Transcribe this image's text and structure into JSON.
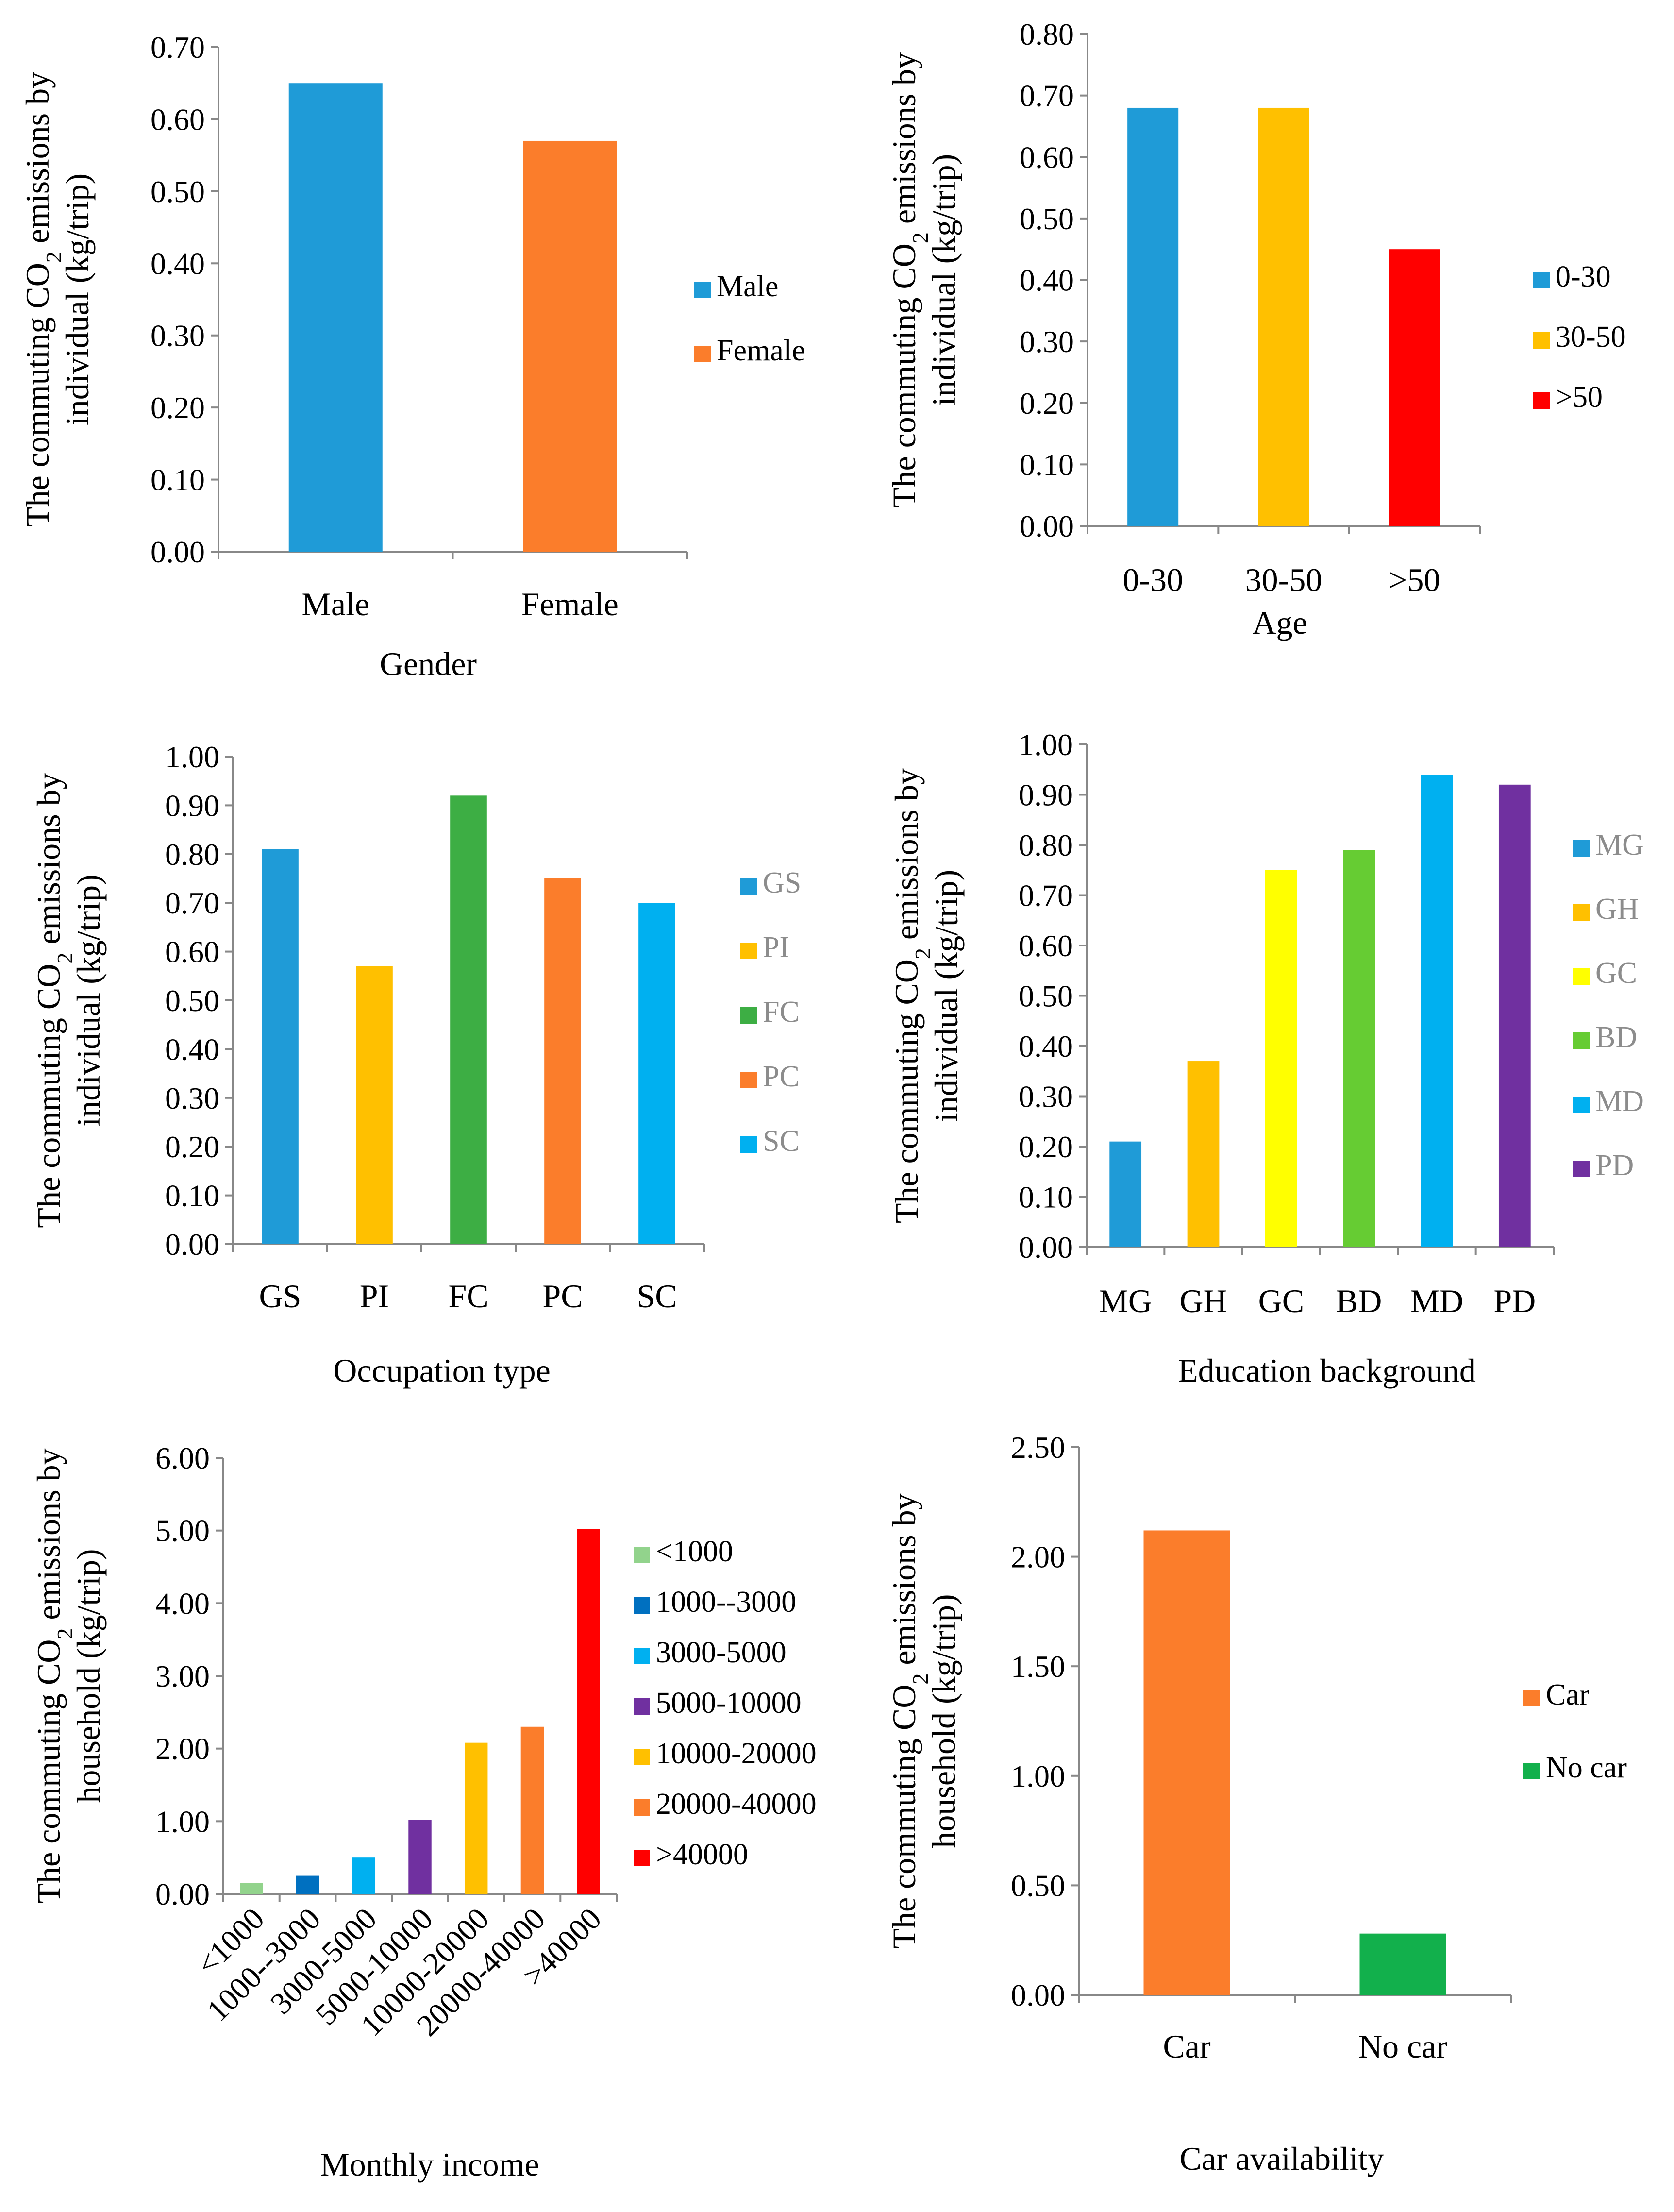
{
  "chart_data": [
    {
      "id": "gender",
      "type": "bar",
      "title": "",
      "xlabel": "Gender",
      "ylabel": [
        "The commuting CO",
        "2",
        " emissions by",
        "individual (kg/trip)"
      ],
      "ylim": [
        0,
        0.7
      ],
      "ystep": 0.1,
      "ydecimals": 2,
      "categories": [
        "Male",
        "Female"
      ],
      "values": [
        0.65,
        0.57
      ],
      "colors": [
        "#1f9bd7",
        "#fb7d2b"
      ],
      "legend": [
        "Male",
        "Female"
      ],
      "legend_position": "right",
      "legend_text_color": "#000000",
      "grid": false
    },
    {
      "id": "age",
      "type": "bar",
      "title": "",
      "xlabel": "Age",
      "ylabel": [
        "The commuting CO",
        "2",
        " emissions by",
        "individual (kg/trip)"
      ],
      "ylim": [
        0,
        0.8
      ],
      "ystep": 0.1,
      "ydecimals": 2,
      "categories": [
        "0-30",
        "30-50",
        ">50"
      ],
      "values": [
        0.68,
        0.68,
        0.45
      ],
      "colors": [
        "#1f9bd7",
        "#ffc000",
        "#ff0000"
      ],
      "legend": [
        "0-30",
        "30-50",
        ">50"
      ],
      "legend_position": "right",
      "legend_text_color": "#000000",
      "grid": false
    },
    {
      "id": "occupation",
      "type": "bar",
      "title": "",
      "xlabel": "Occupation type",
      "ylabel": [
        "The commuting CO",
        "2",
        " emissions by",
        "individual (kg/trip)"
      ],
      "ylim": [
        0,
        1.0
      ],
      "ystep": 0.1,
      "ydecimals": 2,
      "categories": [
        "GS",
        "PI",
        "FC",
        "PC",
        "SC"
      ],
      "values": [
        0.81,
        0.57,
        0.92,
        0.75,
        0.7
      ],
      "colors": [
        "#1f9bd7",
        "#ffc000",
        "#3dae44",
        "#fb7d2b",
        "#00b0f0"
      ],
      "legend": [
        "GS",
        "PI",
        "FC",
        "PC",
        "SC"
      ],
      "legend_position": "right",
      "legend_text_color": "#8c8c8c",
      "grid": false
    },
    {
      "id": "education",
      "type": "bar",
      "title": "",
      "xlabel": "Education background",
      "ylabel": [
        "The commuting CO",
        "2",
        " emissions by",
        "individual (kg/trip)"
      ],
      "ylim": [
        0,
        1.0
      ],
      "ystep": 0.1,
      "ydecimals": 2,
      "categories": [
        "MG",
        "GH",
        "GC",
        "BD",
        "MD",
        "PD"
      ],
      "values": [
        0.21,
        0.37,
        0.75,
        0.79,
        0.94,
        0.92
      ],
      "colors": [
        "#1f9bd7",
        "#ffc000",
        "#ffff00",
        "#66cc33",
        "#00b0f0",
        "#7030a0"
      ],
      "legend": [
        "MG",
        "GH",
        "GC",
        "BD",
        "MD",
        "PD"
      ],
      "legend_position": "right",
      "legend_text_color": "#8c8c8c",
      "grid": false
    },
    {
      "id": "income",
      "type": "bar",
      "title": "",
      "xlabel": "Monthly income",
      "ylabel": [
        "The commuting CO",
        "2",
        " emissions by",
        "household (kg/trip)"
      ],
      "ylim": [
        0,
        6.0
      ],
      "ystep": 1.0,
      "ydecimals": 2,
      "categories": [
        "<1000",
        "1000--3000",
        "3000-5000",
        "5000-10000",
        "10000-20000",
        "20000-40000",
        ">40000"
      ],
      "values": [
        0.15,
        0.25,
        0.5,
        1.02,
        2.08,
        2.3,
        5.02
      ],
      "colors": [
        "#92d38c",
        "#0070c0",
        "#00b0f0",
        "#7030a0",
        "#ffc000",
        "#fb7d2b",
        "#ff0000"
      ],
      "legend": [
        "<1000",
        "1000--3000",
        "3000-5000",
        "5000-10000",
        "10000-20000",
        "20000-40000",
        ">40000"
      ],
      "legend_position": "right",
      "legend_text_color": "#000000",
      "rotated_ticks": true,
      "grid": false
    },
    {
      "id": "car",
      "type": "bar",
      "title": "",
      "xlabel": "Car availability",
      "ylabel": [
        "The commuting CO",
        "2",
        " emissions by",
        "household (kg/trip)"
      ],
      "ylim": [
        0,
        2.5
      ],
      "ystep": 0.5,
      "ydecimals": 2,
      "categories": [
        "Car",
        "No car"
      ],
      "values": [
        2.12,
        0.28
      ],
      "colors": [
        "#fb7d2b",
        "#12b04c"
      ],
      "legend": [
        "Car",
        "No car"
      ],
      "legend_position": "right",
      "legend_text_color": "#000000",
      "grid": false
    }
  ]
}
